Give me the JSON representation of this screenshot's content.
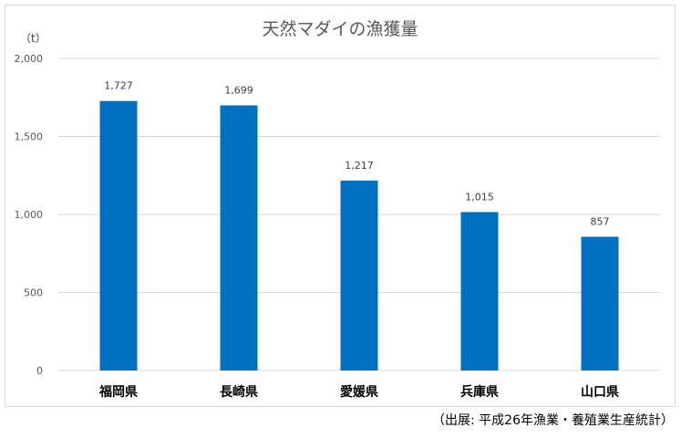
{
  "chart_data": {
    "type": "bar",
    "title": "天然マダイの漁獲量",
    "unit_label": "（t）",
    "categories": [
      "福岡県",
      "長崎県",
      "愛媛県",
      "兵庫県",
      "山口県"
    ],
    "values": [
      1727,
      1699,
      1217,
      1015,
      857
    ],
    "value_labels": [
      "1,727",
      "1,699",
      "1,217",
      "1,015",
      "857"
    ],
    "yticks": [
      0,
      500,
      1000,
      1500,
      2000
    ],
    "ytick_labels": [
      "0",
      "500",
      "1,000",
      "1,500",
      "2,000"
    ],
    "ylim": [
      0,
      2000
    ],
    "bar_color": "#0070c0",
    "grid": true,
    "grid_color": "#d9d9d9"
  },
  "source_note": "（出展: 平成26年漁業・養殖業生産統計）"
}
